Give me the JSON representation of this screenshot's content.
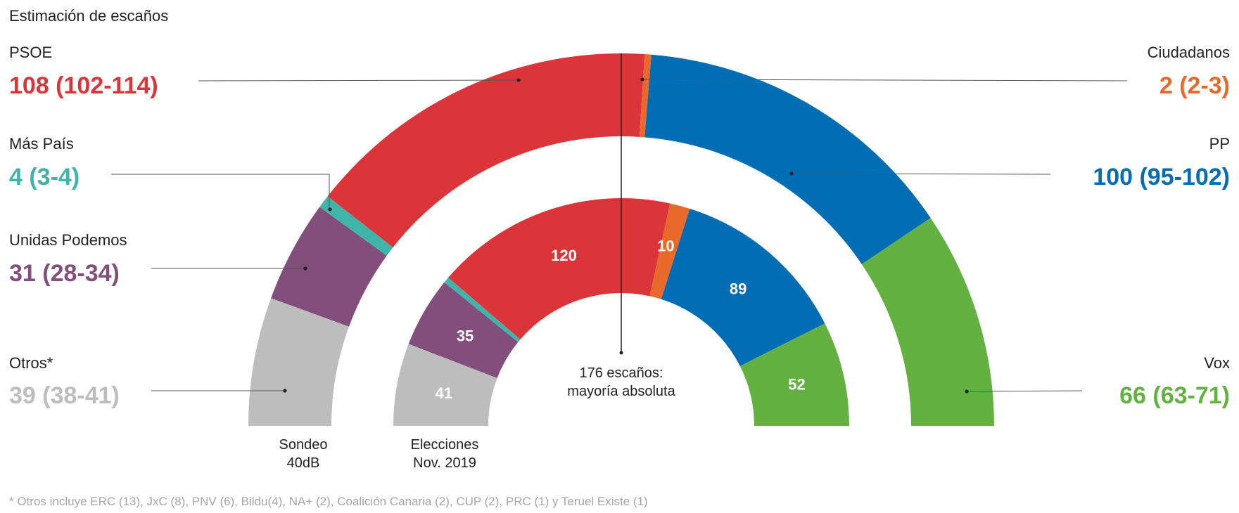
{
  "chart_data": {
    "type": "pie",
    "subtype": "double-hemicycle",
    "title": "Estimación de escaños",
    "total_seats": 350,
    "majority": {
      "seats": 176,
      "label_line1": "176 escaños:",
      "label_line2": "mayoría absoluta"
    },
    "parties": [
      {
        "key": "otros",
        "name": "Otros*",
        "color": "#bdbdbd",
        "estimate": "39 (38-41)",
        "survey": 39,
        "election": 41
      },
      {
        "key": "up",
        "name": "Unidas Podemos",
        "color": "#824e7c",
        "estimate": "31 (28-34)",
        "survey": 31,
        "election": 35
      },
      {
        "key": "mp",
        "name": "Más País",
        "color": "#3fb4a8",
        "estimate": "4 (3-4)",
        "survey": 4,
        "election": 3
      },
      {
        "key": "psoe",
        "name": "PSOE",
        "color": "#db3539",
        "estimate": "108 (102-114)",
        "survey": 108,
        "election": 120
      },
      {
        "key": "cs",
        "name": "Ciudadanos",
        "color": "#e8692a",
        "estimate": "2 (2-3)",
        "survey": 2,
        "election": 10
      },
      {
        "key": "pp",
        "name": "PP",
        "color": "#006db5",
        "estimate": "100 (95-102)",
        "survey": 100,
        "election": 89
      },
      {
        "key": "vox",
        "name": "Vox",
        "color": "#62b141",
        "estimate": "66 (63-71)",
        "survey": 66,
        "election": 52
      }
    ],
    "ring_labels": {
      "survey": [
        "Sondeo",
        "40dB"
      ],
      "election": [
        "Elecciones",
        "Nov. 2019"
      ]
    },
    "footnote": "* Otros incluye ERC (13), JxC (8), PNV (6), Bildu(4), NA+ (2), Coalición Canaria (2), CUP (2), PRC (1) y Teruel Existe (1)"
  }
}
